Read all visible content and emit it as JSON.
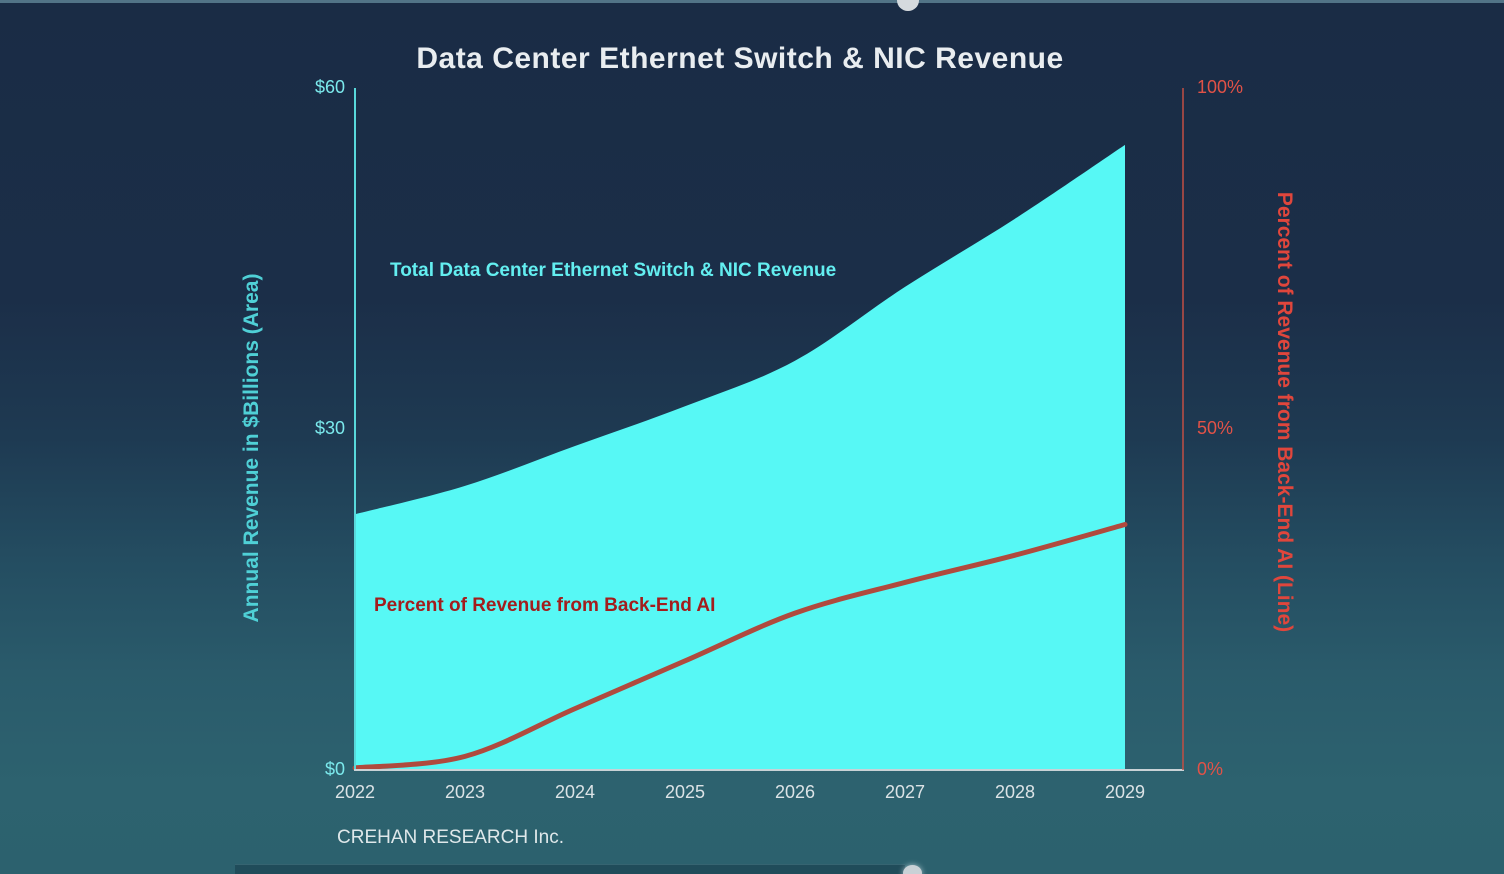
{
  "page": {
    "title": "Data Center Ethernet Switch & NIC Revenue",
    "source": "CREHAN RESEARCH Inc."
  },
  "chart_data": {
    "type": "area",
    "title": "Data Center Ethernet Switch & NIC Revenue",
    "categories": [
      "2022",
      "2023",
      "2024",
      "2025",
      "2026",
      "2027",
      "2028",
      "2029"
    ],
    "series": [
      {
        "name": "Total Data Center Ethernet Switch & NIC Revenue",
        "type": "area",
        "axis": "left",
        "unit": "$Billions",
        "values": [
          22.5,
          25,
          28.5,
          32,
          36,
          42.5,
          48.5,
          55
        ],
        "color": "#57f8f5",
        "label_color": "#63eef0"
      },
      {
        "name": "Percent of Revenue from Back-End AI",
        "type": "line",
        "axis": "right",
        "unit": "%",
        "values": [
          0.3,
          2,
          9,
          16,
          23,
          27.5,
          31.5,
          36
        ],
        "color": "#b04a3e",
        "label_color": "#a31d1d"
      }
    ],
    "left_axis": {
      "title": "Annual Revenue in $Billions (Area)",
      "ticks": [
        "$0",
        "$30",
        "$60"
      ],
      "range": [
        0,
        60
      ],
      "color": "#58d8da",
      "tick_color": "#7be9ec"
    },
    "right_axis": {
      "title": "Percent of Revenue from Back-End AI (Line)",
      "ticks": [
        "0%",
        "50%",
        "100%"
      ],
      "range": [
        0,
        100
      ],
      "color": "#c14f44",
      "tick_color": "#e25247"
    },
    "x_axis": {
      "ticks": [
        "2022",
        "2023",
        "2024",
        "2025",
        "2026",
        "2027",
        "2028",
        "2029"
      ],
      "color": "#dce3e6",
      "baseline_color": "#c9d2d6"
    },
    "grid": false,
    "legend_position": "labels inside plot",
    "source": "CREHAN RESEARCH Inc."
  }
}
